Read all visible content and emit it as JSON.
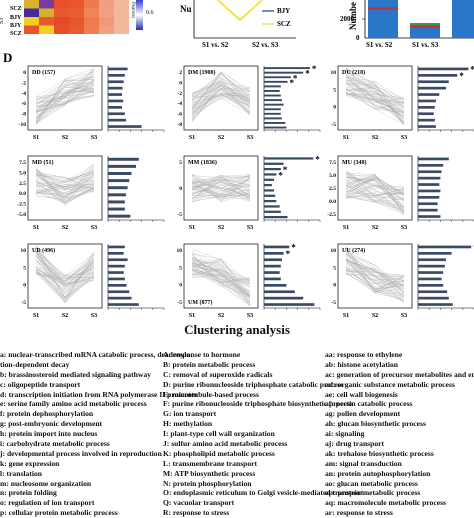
{
  "panel_d_label": "D",
  "top_panels": {
    "heatmap_rows": [
      "SCZ",
      "BJY",
      "BJY",
      "SCZ"
    ],
    "heatmap_side_label": "S3",
    "heatmap_legend_label": "Pearson",
    "heatmap_legend_tick": "0.6",
    "line_chart": {
      "ylabel": "Nu",
      "x_ticks": [
        "S1 vs. S2",
        "S2 vs. S3"
      ],
      "legend": [
        "BJY",
        "SCZ"
      ]
    },
    "bar_chart": {
      "ylabel": "Numbe",
      "y_ticks": [
        "2000",
        "0"
      ],
      "x_ticks": [
        "S1 vs. S2",
        "S1 vs. S3"
      ]
    }
  },
  "clusters": [
    {
      "label": "DD (157)",
      "yt": [
        "0",
        "-2",
        "-4",
        "-6",
        "-8",
        "-10"
      ],
      "bars": [
        0.35,
        0.3,
        0.28,
        0.26,
        0.25,
        0.27,
        0.25,
        0.3,
        0.32,
        0.6
      ],
      "stars": []
    },
    {
      "label": "DM (1908)",
      "yt": [
        "2",
        "0",
        "-2",
        "-4",
        "-6",
        "-8"
      ],
      "bars": [
        0.82,
        0.7,
        0.48,
        0.42,
        0.3,
        0.28,
        0.3,
        0.32,
        0.35,
        0.3,
        0.3,
        0.32,
        0.38,
        0.4
      ],
      "stars": [
        0,
        1,
        2,
        3
      ]
    },
    {
      "label": "DU (218)",
      "yt": [
        "10",
        "5",
        "0",
        "-5"
      ],
      "bars": [
        0.9,
        0.7,
        0.55,
        0.5,
        0.38,
        0.32,
        0.3,
        0.28,
        0.3,
        0.32
      ],
      "stars": [
        0,
        1
      ]
    },
    {
      "label": "MD (51)",
      "yt": [
        "7.5",
        "5.0",
        "2.5",
        "0.0",
        "-2.5",
        "-5.0"
      ],
      "bars": [
        0.55,
        0.5,
        0.42,
        0.38,
        0.35,
        0.32,
        0.3,
        0.3,
        0.4
      ],
      "stars": []
    },
    {
      "label": "MM (1836)",
      "yt": [
        "5",
        "0",
        "-5"
      ],
      "bars": [
        0.88,
        0.35,
        0.3,
        0.22,
        0.18,
        0.14,
        0.18,
        0.2,
        0.22,
        0.28,
        0.3,
        0.42
      ],
      "stars": [
        0,
        2,
        3
      ]
    },
    {
      "label": "MU (348)",
      "yt": [
        "7.5",
        "5.0",
        "2.5",
        "0.0",
        "-2.5"
      ],
      "bars": [
        0.55,
        0.45,
        0.42,
        0.4,
        0.38,
        0.4,
        0.38,
        0.35,
        0.35,
        0.4
      ],
      "stars": []
    },
    {
      "label": "UD (496)",
      "yt": [
        "10",
        "5",
        "0",
        "-5"
      ],
      "bars": [
        0.3,
        0.28,
        0.35,
        0.3,
        0.28,
        0.3,
        0.33,
        0.38,
        0.42,
        0.55
      ],
      "stars": []
    },
    {
      "label": "UM (877)",
      "yt": [
        "10",
        "5",
        "0",
        "-5"
      ],
      "bars": [
        0.45,
        0.35,
        0.32,
        0.3,
        0.28,
        0.3,
        0.4,
        0.55,
        0.7,
        0.9
      ],
      "stars": [
        0,
        1
      ],
      "bottom_label": true
    },
    {
      "label": "UU (274)",
      "yt": [
        "10",
        "5",
        "0",
        "-5"
      ],
      "bars": [
        0.95,
        0.6,
        0.5,
        0.48,
        0.45,
        0.42,
        0.45,
        0.52,
        0.55,
        0.62
      ],
      "stars": [
        0
      ]
    }
  ],
  "x_ticks": [
    "S1",
    "S2",
    "S3"
  ],
  "title": "Clustering analysis",
  "legend": {
    "col1": [
      "a: nuclear-transcribed mRNA catabolic process, deadenyla",
      "tion-dependent decay",
      "b: brassinosteroid mediated signaling pathway",
      "c: oligopeptide transport",
      "d: transcription initiation from RNA polymerase II promoter",
      "e: serine family amino acid metabolic process",
      "f: protein dephosphorylation",
      "g: post-embryonic development",
      "h: protein import into nucleus",
      "i: carbohydrate metabolic process",
      "j: developmental process involved in reproduction",
      "k: gene expression",
      "l: translation",
      "m: nucleosome organization",
      "n: protein folding",
      "o: regulation of ion transport",
      "p: cellular protein metabolic process"
    ],
    "col2": [
      "A: response to hormone",
      "B: protein metabolic process",
      "C: removal of superoxide radicals",
      "D: purine ribonucleoside triphosphate catabolic process",
      "E: microtubule-based process",
      "F: purine ribonucleoside triphosphate biosynthetic process",
      "G: ion transport",
      "H: methylation",
      "I: plant-type cell wall organization",
      "J: sulfur amino acid metabolic process",
      "K: phospholipid metabolic process",
      "L: transmembrane transport",
      "M: ATP biosynthetic process",
      "N: protein phosphorylation",
      "O: endoplasmic reticulum to Golgi vesicle-mediated transport",
      "Q: vacuolar transport",
      "R: response to stress"
    ],
    "col3": [
      "aa: response to ethylene",
      "ab: histone acetylation",
      "ac: generation of precursor metabolites and energy",
      "ad: organic substance metabolic process",
      "ae: cell wall biogenesis",
      "af: pectin catabolic process",
      "ag: pollen development",
      "ah: glucan biosynthetic process",
      "ai: signaling",
      "aj: drug transport",
      "ak: trehalose biosynthetic process",
      "am: signal transduction",
      "an: protein autophosphorylation",
      "ao: glucan metabolic process",
      "ap: protein metabolic process",
      "aq: macromolecule metabolic process",
      "ar: response to stress"
    ]
  }
}
